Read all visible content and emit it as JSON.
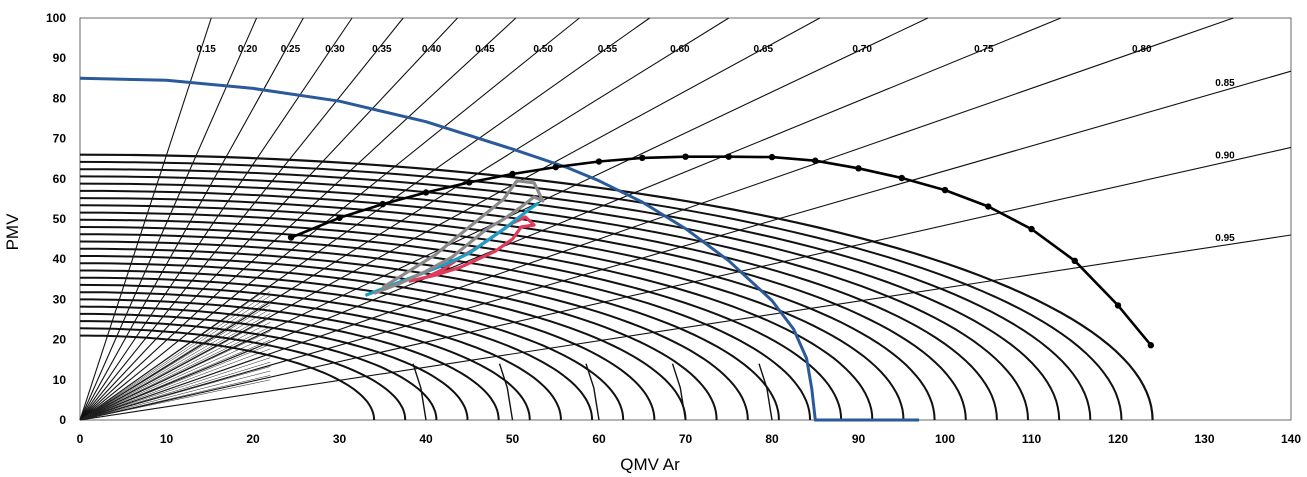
{
  "chart_data": {
    "type": "line",
    "title": "",
    "xlabel": "QMV Ar",
    "ylabel": "PMV",
    "xlim": [
      0,
      140
    ],
    "ylim": [
      0,
      100
    ],
    "x_ticks": [
      "0",
      "10",
      "20",
      "30",
      "40",
      "50",
      "60",
      "70",
      "80",
      "90",
      "100",
      "110",
      "120",
      "130",
      "140"
    ],
    "y_ticks": [
      "0",
      "10",
      "20",
      "30",
      "40",
      "50",
      "60",
      "70",
      "80",
      "90",
      "100"
    ],
    "grid": false,
    "power_factor_rays": [
      "0.95",
      "0.90",
      "0.85",
      "0.80",
      "0.75",
      "0.70",
      "0.65",
      "0.60",
      "0.55",
      "0.50",
      "0.45",
      "0.40",
      "0.35",
      "0.30",
      "0.25",
      "0.20",
      "0.15"
    ],
    "series": [
      {
        "color": "#2a5a9a",
        "x": [
          0,
          10,
          20,
          30,
          40,
          50,
          56.3,
          60,
          65,
          70,
          75,
          80,
          82.5,
          84,
          84.6,
          85,
          97
        ],
        "y": [
          85,
          84.5,
          82.5,
          79.3,
          74.2,
          67.4,
          62.8,
          59.5,
          54.2,
          47.6,
          39.6,
          29.7,
          22.6,
          15.3,
          7.7,
          0,
          0
        ]
      },
      {
        "color": "#000000",
        "x": [
          24.4,
          30,
          35,
          40,
          45,
          50,
          55,
          60,
          65,
          70,
          75,
          80,
          85,
          90,
          95,
          100,
          105,
          110,
          115,
          120,
          123.8
        ],
        "y": [
          45.4,
          50.3,
          53.7,
          56.6,
          59.1,
          61.2,
          62.9,
          64.3,
          65.2,
          65.5,
          65.5,
          65.4,
          64.5,
          62.6,
          60.2,
          57.2,
          53.1,
          47.5,
          39.6,
          28.5,
          18.6
        ]
      },
      {
        "color": "#e03a5a",
        "x": [
          38,
          41,
          44,
          46,
          48,
          50,
          51,
          52.5,
          51.5,
          50,
          48,
          46,
          44,
          42,
          40,
          38
        ],
        "y": [
          34.5,
          36,
          38,
          40,
          42,
          45,
          48,
          48.5,
          50.5,
          49,
          46,
          43,
          40.5,
          37.5,
          35.5,
          34.5
        ]
      },
      {
        "color": "#1a9ec4",
        "x": [
          33,
          36,
          39,
          42,
          45,
          47,
          49,
          50.5,
          52,
          53
        ],
        "y": [
          31,
          33.5,
          36,
          38.5,
          41.5,
          44.5,
          47.5,
          50,
          52.5,
          54
        ]
      },
      {
        "color": "#8a8a8a",
        "x": [
          34,
          37,
          40,
          43,
          45,
          47,
          49,
          51,
          52.5,
          53.5,
          52.5,
          50.5,
          49,
          47,
          45,
          43,
          41,
          38,
          35
        ],
        "y": [
          31.5,
          34,
          37,
          40.5,
          44,
          47.5,
          50,
          53,
          55.5,
          54.5,
          59,
          59.5,
          55,
          51.5,
          48,
          44.5,
          41,
          37,
          33
        ]
      }
    ]
  }
}
